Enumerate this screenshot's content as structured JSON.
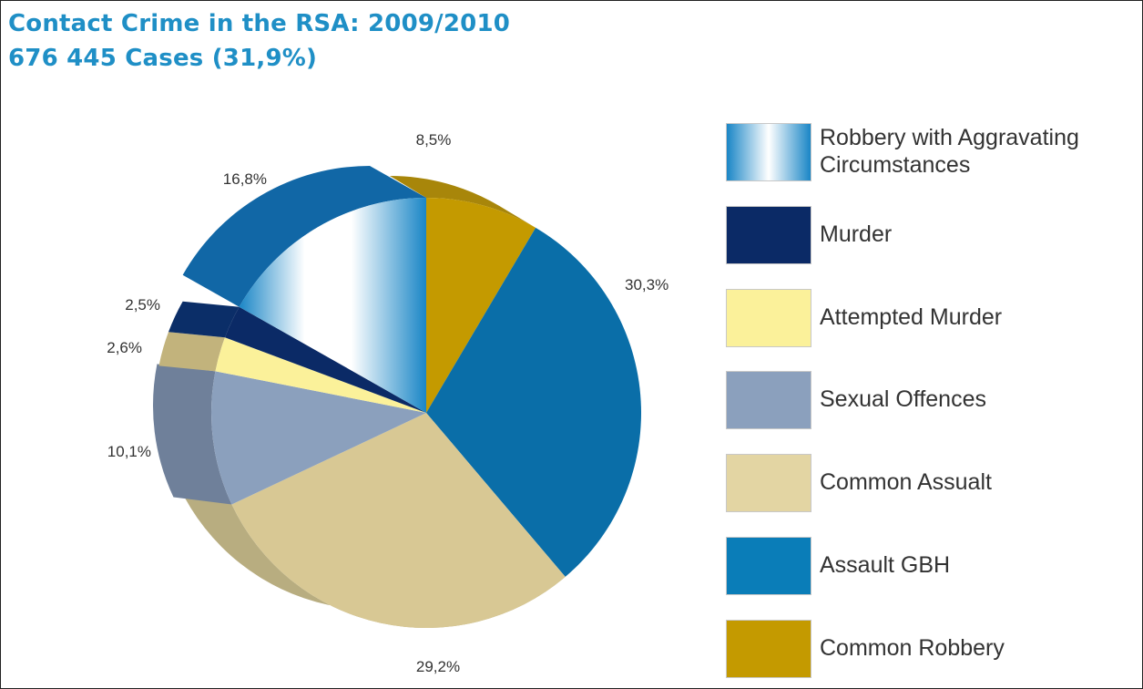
{
  "title": "Contact Crime in the RSA: 2009/2010",
  "subtitle": "676 445 Cases (31,9%)",
  "chart_data": {
    "type": "pie",
    "title": "Contact Crime in the RSA: 2009/2010",
    "subtitle": "676 445 Cases (31,9%)",
    "slices": [
      {
        "name": "Common Robbery",
        "value": 8.5,
        "label": "8,5%",
        "color": "#c49a00"
      },
      {
        "name": "Assault GBH",
        "value": 30.3,
        "label": "30,3%",
        "color": "#0a6ea8"
      },
      {
        "name": "Common Assualt",
        "value": 29.2,
        "label": "29,2%",
        "color": "#d8c894"
      },
      {
        "name": "Sexual Offences",
        "value": 10.1,
        "label": "10,1%",
        "color": "#8ba0bd"
      },
      {
        "name": "Attempted Murder",
        "value": 2.6,
        "label": "2,6%",
        "color": "#fbf19a"
      },
      {
        "name": "Murder",
        "value": 2.5,
        "label": "2,5%",
        "color": "#0b2a66"
      },
      {
        "name": "Robbery with Aggravating Circumstances",
        "value": 16.8,
        "label": "16,8%",
        "color": "#1a83c4"
      }
    ],
    "legend": [
      {
        "label": "Robbery with Aggravating Circumstances",
        "color": "#1a83c4",
        "gradient": true
      },
      {
        "label": "Murder",
        "color": "#0b2a66"
      },
      {
        "label": "Attempted Murder",
        "color": "#fbf19a"
      },
      {
        "label": "Sexual Offences",
        "color": "#8ba0bd"
      },
      {
        "label": "Common Assualt",
        "color": "#e3d5a3"
      },
      {
        "label": "Assault GBH",
        "color": "#0a7db8"
      },
      {
        "label": "Common Robbery",
        "color": "#c49a00"
      }
    ],
    "legend_position": "right"
  }
}
